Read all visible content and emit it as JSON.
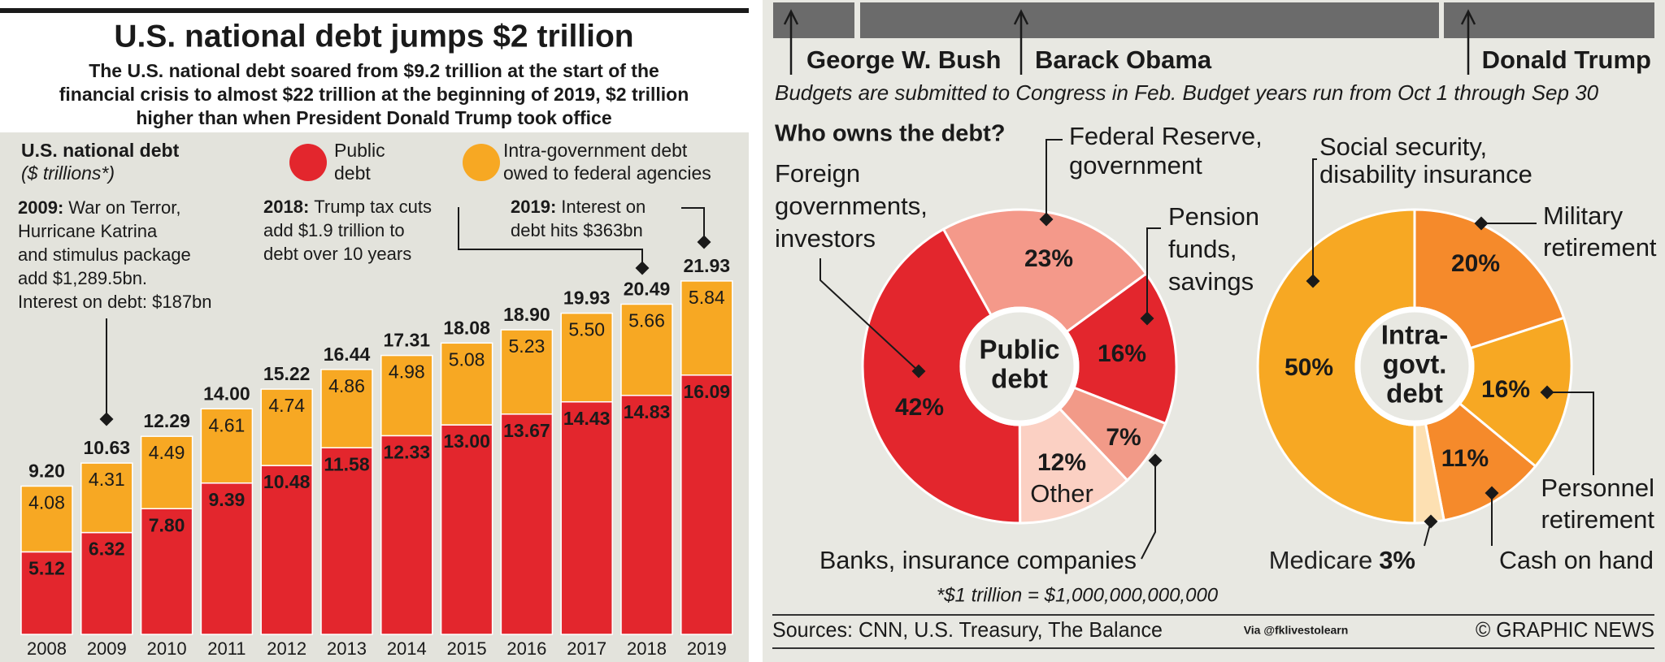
{
  "header": {
    "title": "U.S. national debt jumps $2 trillion",
    "subtitle": [
      "The U.S. national debt soared from $9.2 trillion at the start of the",
      "financial crisis to almost $22 trillion at the beginning of 2019, $2 trillion",
      "higher than when President Donald Trump took office"
    ]
  },
  "presidents": [
    "George W. Bush",
    "Barack Obama",
    "Donald Trump"
  ],
  "budget_note": "Budgets are submitted to Congress in Feb. Budget years run from Oct 1 through Sep 30",
  "question": "Who owns the debt?",
  "footnote": "*$1 trillion = $1,000,000,000,000",
  "sources": "Sources: CNN, U.S. Treasury, The Balance",
  "watermark": "Via @fklivestolearn",
  "credit": "© GRAPHIC NEWS",
  "chart_data": [
    {
      "type": "bar",
      "stacked": true,
      "title": "U.S. national debt",
      "subtitle": "($ trillions*)",
      "categories": [
        "2008",
        "2009",
        "2010",
        "2011",
        "2012",
        "2013",
        "2014",
        "2015",
        "2016",
        "2017",
        "2018",
        "2019"
      ],
      "series": [
        {
          "name": [
            "Public",
            "debt"
          ],
          "color": "#e3262d",
          "values": [
            5.12,
            6.32,
            7.8,
            9.39,
            10.48,
            11.58,
            12.33,
            13,
            13.67,
            14.43,
            14.83,
            16.09
          ],
          "value_labels": [
            "5.12",
            "6.32",
            "7.80",
            "9.39",
            "10.48",
            "11.58",
            "12.33",
            "13.00",
            "13.67",
            "14.43",
            "14.83",
            "16.09"
          ]
        },
        {
          "name": [
            "Intra-government debt",
            "owed to federal agencies"
          ],
          "color": "#f7a823",
          "values": [
            4.08,
            4.31,
            4.49,
            4.61,
            4.74,
            4.86,
            4.98,
            5.08,
            5.23,
            5.5,
            5.66,
            5.84
          ],
          "value_labels": [
            "4.08",
            "4.31",
            "4.49",
            "4.61",
            "4.74",
            "4.86",
            "4.98",
            "5.08",
            "5.23",
            "5.50",
            "5.66",
            "5.84"
          ]
        }
      ],
      "totals": [
        9.2,
        10.63,
        12.29,
        14,
        15.22,
        16.44,
        17.31,
        18.08,
        18.9,
        19.93,
        20.49,
        21.93
      ],
      "total_labels": [
        "9.20",
        "10.63",
        "12.29",
        "14.00",
        "15.22",
        "16.44",
        "17.31",
        "18.08",
        "18.90",
        "19.93",
        "20.49",
        "21.93"
      ],
      "ylim": [
        0,
        25
      ],
      "annotations": [
        {
          "label": "2009:",
          "lines": [
            "War on Terror,",
            "Hurricane Katrina",
            "and stimulus package",
            "add $1,289.5bn.",
            "Interest on debt: $187bn"
          ]
        },
        {
          "label": "2018:",
          "lines": [
            "Trump tax cuts",
            "add $1.9 trillion to",
            "debt over 10 years"
          ]
        },
        {
          "label": "2019:",
          "lines": [
            "Interest on",
            "debt hits $363bn"
          ]
        }
      ]
    },
    {
      "type": "donut",
      "center_label": [
        "Public",
        "debt"
      ],
      "categories": [
        [
          "Federal Reserve,",
          "government"
        ],
        [
          "Pension",
          "funds,",
          "savings"
        ],
        [
          "Banks, insurance companies"
        ],
        [
          "Other"
        ],
        [
          "Foreign",
          "governments,",
          "investors"
        ]
      ],
      "values": [
        23,
        16,
        7,
        12,
        42
      ],
      "value_labels": [
        "23%",
        "16%",
        "7%",
        "12%",
        "42%"
      ],
      "colors": [
        "#f4998a",
        "#e3262d",
        "#f29a88",
        "#fbd0c3",
        "#e3262d"
      ]
    },
    {
      "type": "donut",
      "center_label": [
        "Intra-",
        "govt.",
        "debt"
      ],
      "categories": [
        [
          "Military",
          "retirement"
        ],
        [
          "Personnel",
          "retirement"
        ],
        [
          "Cash on hand"
        ],
        [
          "Medicare"
        ],
        [
          "Social security,",
          "disability insurance"
        ]
      ],
      "values": [
        20,
        16,
        11,
        3,
        50
      ],
      "value_labels": [
        "20%",
        "16%",
        "11%",
        "3%",
        "50%"
      ],
      "colors": [
        "#f58a2b",
        "#f7a823",
        "#f58a2b",
        "#fde0b2",
        "#f7a823"
      ]
    }
  ]
}
